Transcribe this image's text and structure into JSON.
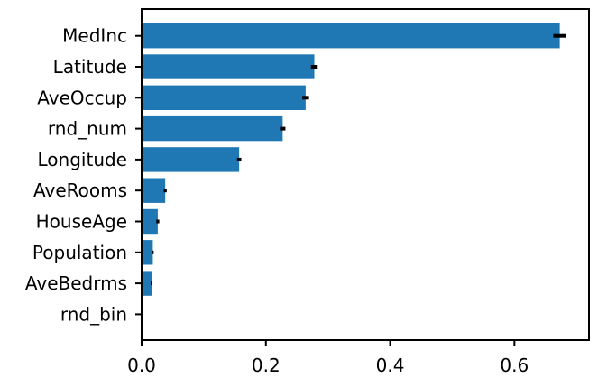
{
  "chart_data": {
    "type": "bar",
    "orientation": "horizontal",
    "title": "",
    "xlabel": "",
    "ylabel": "",
    "categories": [
      "MedInc",
      "Latitude",
      "AveOccup",
      "rnd_num",
      "Longitude",
      "AveRooms",
      "HouseAge",
      "Population",
      "AveBedrms",
      "rnd_bin"
    ],
    "values": [
      0.673,
      0.278,
      0.264,
      0.227,
      0.157,
      0.038,
      0.026,
      0.018,
      0.016,
      0.0
    ],
    "errors": [
      0.009,
      0.004,
      0.004,
      0.003,
      0.002,
      0.001,
      0.001,
      0.0,
      0.0,
      0.0
    ],
    "xlim": [
      0,
      0.72
    ],
    "xticks": [
      "0.0",
      "0.2",
      "0.4",
      "0.6"
    ],
    "grid": false,
    "bar_color": "#1f77b4",
    "error_color": "#000000"
  }
}
